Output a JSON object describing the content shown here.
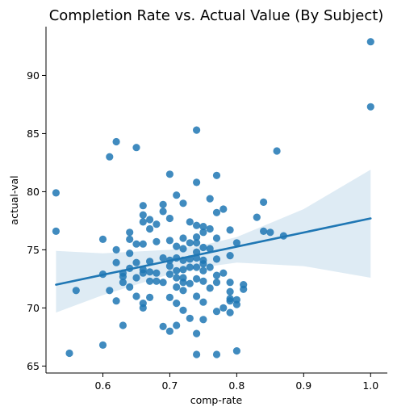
{
  "chart_data": {
    "type": "scatter",
    "title": "Completion Rate vs. Actual Value (By Subject)",
    "xlabel": "comp-rate",
    "ylabel": "actual-val",
    "xlim": [
      0.515,
      1.025
    ],
    "ylim": [
      64.4,
      94.2
    ],
    "xticks": [
      0.6,
      0.7,
      0.8,
      0.9,
      1.0
    ],
    "xtick_labels": [
      "0.6",
      "0.7",
      "0.8",
      "0.9",
      "1.0"
    ],
    "yticks": [
      65,
      70,
      75,
      80,
      85,
      90
    ],
    "ytick_labels": [
      "65",
      "70",
      "75",
      "80",
      "85",
      "90"
    ],
    "grid": false,
    "colors": {
      "points": "#1f77b4",
      "line": "#1f77b4",
      "band": "#1f77b4"
    },
    "regression": {
      "x": [
        0.53,
        1.0
      ],
      "y": [
        72.0,
        77.7
      ]
    },
    "confidence_band": {
      "x": [
        0.53,
        0.6,
        0.7,
        0.75,
        0.8,
        0.9,
        1.0
      ],
      "upper": [
        74.9,
        74.7,
        75.0,
        75.4,
        76.1,
        78.5,
        81.9
      ],
      "lower": [
        69.6,
        71.1,
        72.9,
        73.5,
        73.9,
        73.6,
        72.6
      ]
    },
    "points": {
      "x": [
        0.53,
        0.53,
        0.55,
        0.56,
        0.6,
        0.6,
        0.6,
        0.61,
        0.61,
        0.62,
        0.62,
        0.62,
        0.62,
        0.63,
        0.63,
        0.63,
        0.63,
        0.64,
        0.64,
        0.64,
        0.64,
        0.64,
        0.65,
        0.65,
        0.65,
        0.65,
        0.65,
        0.66,
        0.66,
        0.66,
        0.66,
        0.66,
        0.66,
        0.66,
        0.66,
        0.67,
        0.67,
        0.67,
        0.67,
        0.67,
        0.67,
        0.68,
        0.68,
        0.68,
        0.68,
        0.69,
        0.69,
        0.69,
        0.69,
        0.69,
        0.7,
        0.7,
        0.7,
        0.7,
        0.7,
        0.7,
        0.7,
        0.7,
        0.71,
        0.71,
        0.71,
        0.71,
        0.71,
        0.71,
        0.71,
        0.71,
        0.72,
        0.72,
        0.72,
        0.72,
        0.72,
        0.72,
        0.72,
        0.72,
        0.72,
        0.73,
        0.73,
        0.73,
        0.73,
        0.73,
        0.73,
        0.74,
        0.74,
        0.74,
        0.74,
        0.74,
        0.74,
        0.74,
        0.74,
        0.74,
        0.74,
        0.74,
        0.74,
        0.75,
        0.75,
        0.75,
        0.75,
        0.75,
        0.75,
        0.75,
        0.75,
        0.75,
        0.76,
        0.76,
        0.76,
        0.76,
        0.76,
        0.77,
        0.77,
        0.77,
        0.77,
        0.77,
        0.77,
        0.77,
        0.77,
        0.78,
        0.78,
        0.78,
        0.79,
        0.79,
        0.79,
        0.79,
        0.79,
        0.79,
        0.79,
        0.8,
        0.8,
        0.8,
        0.8,
        0.81,
        0.81,
        0.83,
        0.84,
        0.84,
        0.85,
        0.86,
        0.87,
        1.0,
        1.0
      ],
      "y": [
        79.9,
        76.6,
        66.1,
        71.5,
        75.9,
        72.9,
        66.8,
        83.0,
        71.5,
        84.3,
        75.0,
        73.9,
        70.6,
        72.7,
        72.2,
        68.5,
        73.0,
        76.5,
        75.9,
        74.7,
        73.4,
        71.8,
        83.8,
        75.5,
        73.9,
        72.6,
        71.0,
        78.8,
        78.0,
        77.4,
        75.5,
        73.0,
        73.3,
        70.4,
        70.0,
        77.6,
        76.8,
        74.0,
        73.1,
        72.3,
        70.9,
        77.2,
        75.7,
        73.0,
        72.3,
        78.9,
        78.3,
        74.3,
        72.2,
        68.4,
        81.5,
        77.7,
        75.8,
        74.1,
        73.6,
        72.9,
        70.9,
        68.0,
        79.7,
        75.3,
        74.3,
        73.2,
        72.6,
        71.8,
        70.4,
        68.5,
        79.0,
        76.0,
        75.1,
        74.1,
        73.3,
        72.6,
        72.2,
        71.5,
        69.8,
        77.4,
        75.6,
        74.2,
        73.5,
        72.1,
        69.1,
        85.3,
        80.8,
        77.1,
        76.1,
        75.6,
        74.8,
        74.3,
        73.5,
        72.5,
        71.0,
        67.8,
        66.0,
        77.0,
        76.5,
        75.2,
        74.1,
        73.8,
        73.2,
        72.3,
        70.5,
        69.0,
        79.4,
        76.8,
        75.1,
        73.5,
        71.7,
        81.4,
        78.2,
        76.0,
        74.2,
        72.8,
        72.2,
        69.7,
        66.0,
        78.5,
        73.0,
        70.0,
        76.7,
        74.5,
        72.2,
        71.4,
        70.8,
        70.6,
        69.6,
        75.6,
        70.7,
        70.3,
        66.3,
        72.0,
        71.6,
        77.8,
        79.1,
        76.6,
        76.5,
        83.5,
        76.2,
        92.9,
        87.3
      ]
    }
  }
}
